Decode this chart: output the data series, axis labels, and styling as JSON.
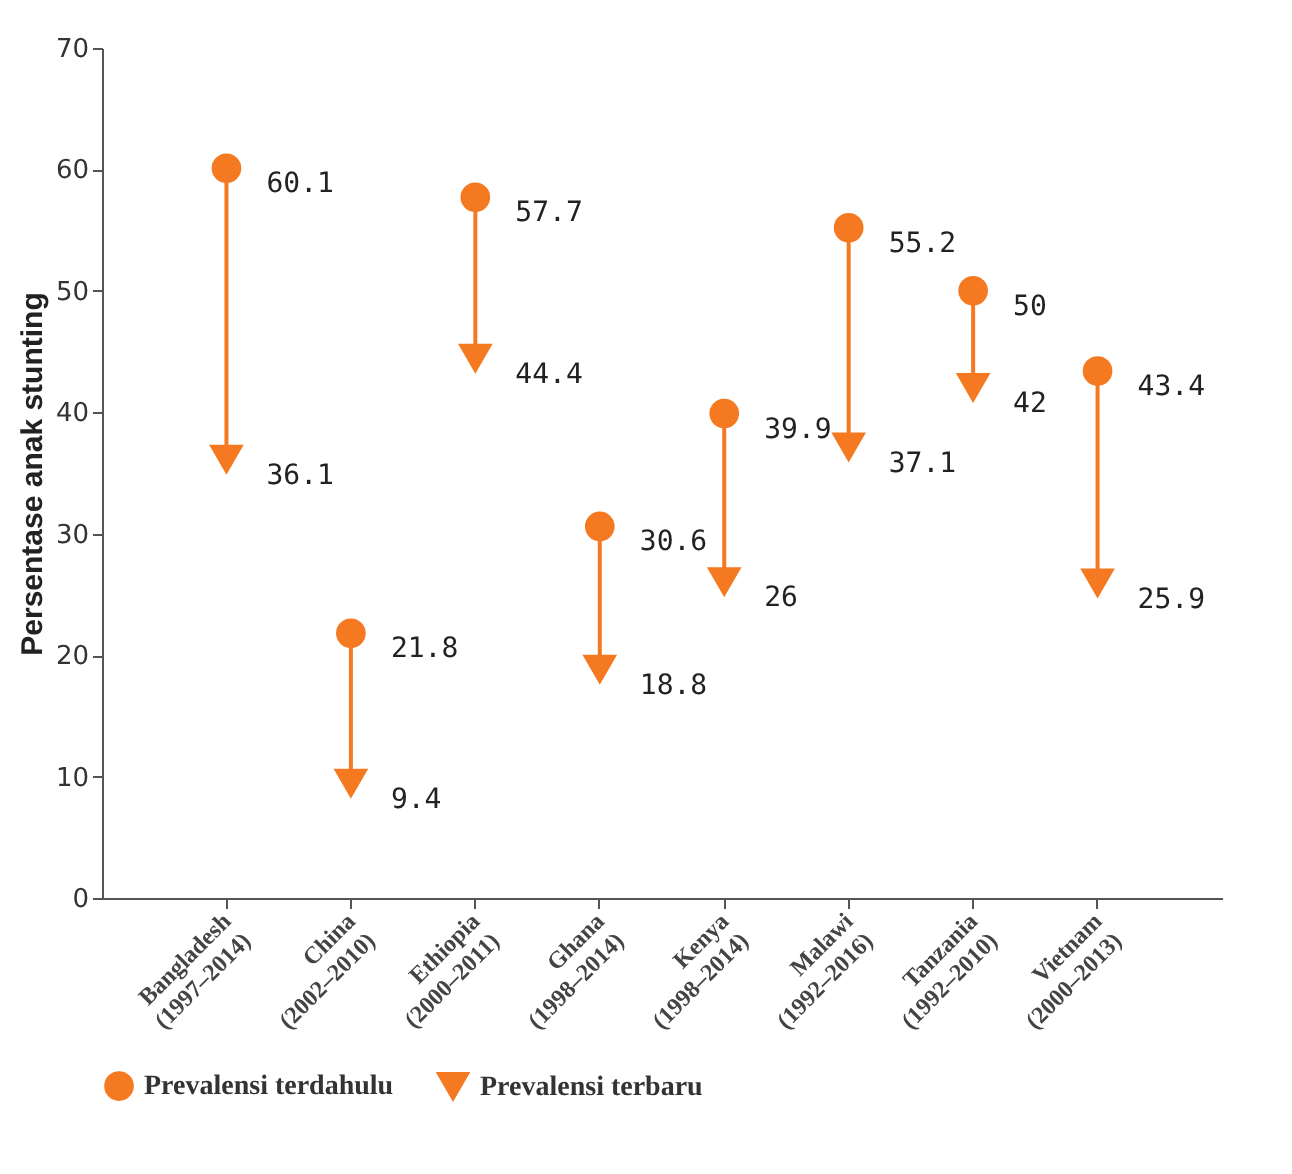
{
  "chart_data": {
    "type": "scatter",
    "ylabel": "Persentase anak stunting",
    "categories": [
      "Bangladesh\n(1997–2014)",
      "China\n(2002–2010)",
      "Ethiopia\n(2000–2011)",
      "Ghana\n(1998–2014)",
      "Kenya\n(1998–2014)",
      "Malawi\n(1992–2016)",
      "Tanzania\n(1992–2010)",
      "Vietnam\n(2000–2013)"
    ],
    "series": [
      {
        "name": "Prevalensi terdahulu",
        "color": "#f47920",
        "marker": "circle",
        "values": [
          60.1,
          21.8,
          57.7,
          30.6,
          39.9,
          55.2,
          50,
          43.4
        ]
      },
      {
        "name": "Prevalensi terbaru",
        "color": "#f47920",
        "marker": "triangle",
        "values": [
          36.1,
          9.4,
          44.4,
          18.8,
          26,
          37.1,
          42,
          25.9
        ]
      }
    ],
    "ylim": [
      0,
      70
    ],
    "yticks": [
      0,
      10,
      20,
      30,
      40,
      50,
      60,
      70
    ],
    "grid": false,
    "legend": "bottom",
    "data_labels": true
  }
}
